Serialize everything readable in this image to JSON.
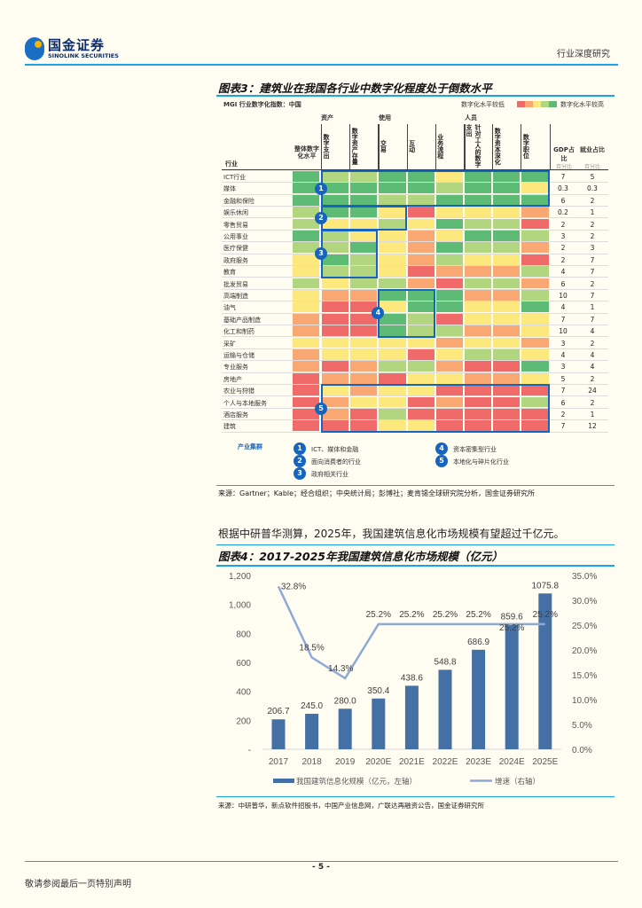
{
  "header": {
    "logo_cn": "国金证券",
    "logo_en": "SINOLINK SECURITIES",
    "section": "行业深度研究"
  },
  "figure3": {
    "title": "图表3：建筑业在我国各行业中数字化程度处于倒数水平",
    "subtitle": "MGI 行业数字化指数：中国",
    "legend_low": "数字化水平较低",
    "legend_high": "数字化水平较高",
    "scale_colors": [
      "#f06a6a",
      "#f9a873",
      "#fde87d",
      "#b2d680",
      "#5dbb76"
    ],
    "groups": [
      "资产",
      "使用",
      "人员"
    ],
    "industry_header": "行业",
    "overall_header": "整体数字化水平",
    "columns": [
      "数字支出",
      "数字资产存量",
      "交易",
      "互动",
      "业务流程",
      "针对工人的数字支出",
      "数字资本深化",
      "数字职位"
    ],
    "gdp_header": "GDP占比",
    "gdp_unit": "百分比",
    "emp_header": "就业占比",
    "emp_unit": "百分比",
    "color_map": {
      "G": "#5dbb76",
      "L": "#b2d680",
      "Y": "#fde87d",
      "O": "#f9a873",
      "R": "#f06a6a"
    },
    "rows": [
      {
        "label": "ICT行业",
        "cells": "GLLGGYGGG",
        "gdp": "7",
        "emp": "5"
      },
      {
        "label": "媒体",
        "cells": "GGGGGLGGY",
        "gdp": "0.3",
        "emp": "0.3"
      },
      {
        "label": "金融和保险",
        "cells": "GGGLLGGGG",
        "gdp": "6",
        "emp": "2"
      },
      {
        "label": "娱乐休闲",
        "cells": "LGGYRYYYO",
        "gdp": "0.2",
        "emp": "1"
      },
      {
        "label": "零售贸易",
        "cells": "LYYLYGLLR",
        "gdp": "2",
        "emp": "2"
      },
      {
        "label": "公用事业",
        "cells": "GLYYOYGGL",
        "gdp": "3",
        "emp": "2"
      },
      {
        "label": "医疗保健",
        "cells": "LLGYOGLLO",
        "gdp": "2",
        "emp": "3"
      },
      {
        "label": "政府服务",
        "cells": "YGLYOLYYR",
        "gdp": "2",
        "emp": "7"
      },
      {
        "label": "教育",
        "cells": "YLLYROOOL",
        "gdp": "4",
        "emp": "7"
      },
      {
        "label": "批发贸易",
        "cells": "LYLLORLLO",
        "gdp": "6",
        "emp": "2"
      },
      {
        "label": "高端制造",
        "cells": "YOOGGGOOL",
        "gdp": "10",
        "emp": "7"
      },
      {
        "label": "油气",
        "cells": "YRRYGGYYG",
        "gdp": "4",
        "emp": "1"
      },
      {
        "label": "基础产品制造",
        "cells": "ORRGLRYYY",
        "gdp": "7",
        "emp": "7"
      },
      {
        "label": "化工和制药",
        "cells": "ORRGLLOOY",
        "gdp": "10",
        "emp": "4"
      },
      {
        "label": "采矿",
        "cells": "YYYYYOYYO",
        "gdp": "3",
        "emp": "2"
      },
      {
        "label": "运输与仓储",
        "cells": "OYYYRYLLY",
        "gdp": "4",
        "emp": "4"
      },
      {
        "label": "专业服务",
        "cells": "OROLLORRG",
        "gdp": "3",
        "emp": "4"
      },
      {
        "label": "房地产",
        "cells": "ROORYYOOY",
        "gdp": "5",
        "emp": "2"
      },
      {
        "label": "农业与狩猎",
        "cells": "RYOYYRRRR",
        "gdp": "7",
        "emp": "24"
      },
      {
        "label": "个人与本地服务",
        "cells": "ROYYRORRL",
        "gdp": "6",
        "emp": "2"
      },
      {
        "label": "酒店服务",
        "cells": "RORLRRRRR",
        "gdp": "2",
        "emp": "1"
      },
      {
        "label": "建筑",
        "cells": "RRRYYRRRR",
        "gdp": "7",
        "emp": "12"
      }
    ],
    "clusters_title": "产业集群",
    "clusters": [
      {
        "n": "1",
        "label": "ICT、媒体和金融",
        "rows": [
          0,
          2
        ],
        "cols": [
          1,
          8
        ]
      },
      {
        "n": "2",
        "label": "面向消费者的行业",
        "rows": [
          3,
          4
        ],
        "cols": [
          1,
          3
        ]
      },
      {
        "n": "3",
        "label": "政府相关行业",
        "rows": [
          5,
          8
        ],
        "cols": [
          1,
          2
        ]
      },
      {
        "n": "4",
        "label": "资本密集型行业",
        "rows": [
          10,
          13
        ],
        "cols": [
          3,
          4
        ]
      },
      {
        "n": "5",
        "label": "本地化与碎片化行业",
        "rows": [
          18,
          21
        ],
        "cols": [
          1,
          8
        ]
      }
    ],
    "source": "来源：Gartner；Kable；经合组织；中央统计局；彭博社；麦肯锡全球研究院分析，国金证券研究所"
  },
  "body_text": "根据中研普华测算，2025年，我国建筑信息化市场规模有望超过千亿元。",
  "figure4": {
    "title": "图表4：2017-2025年我国建筑信息化市场规模（亿元）",
    "source": "来源：中研普华，新点软件招股书，中国产业信息网，广联达再融资公告，国金证券研究所"
  },
  "chart_data": {
    "type": "bar+line",
    "categories": [
      "2017",
      "2018",
      "2019",
      "2020E",
      "2021E",
      "2022E",
      "2023E",
      "2024E",
      "2025E"
    ],
    "series": [
      {
        "name": "我国建筑信息化规模（亿元，左轴）",
        "type": "bar",
        "axis": "left",
        "color": "#4470a5",
        "values": [
          206.7,
          245.0,
          280.0,
          350.4,
          438.6,
          548.8,
          686.9,
          859.6,
          1075.8
        ],
        "labels": [
          "206.7",
          "245.0",
          "280.0",
          "350.4",
          "438.6",
          "548.8",
          "686.9",
          "859.6",
          "1075.8"
        ]
      },
      {
        "name": "增速（右轴）",
        "type": "line",
        "axis": "right",
        "color": "#8fa9d6",
        "values": [
          32.8,
          18.5,
          14.3,
          25.2,
          25.2,
          25.2,
          25.2,
          25.2,
          25.2
        ],
        "labels": [
          "32.8%",
          "18.5%",
          "14.3%",
          "25.2%",
          "25.2%",
          "25.2%",
          "25.2%",
          "25.2%",
          "25.2%"
        ]
      }
    ],
    "y_left": {
      "range": [
        0,
        1200
      ],
      "ticks": [
        "-",
        "200",
        "400",
        "600",
        "800",
        "1,000",
        "1,200"
      ]
    },
    "y_right": {
      "range": [
        0,
        35
      ],
      "ticks": [
        "0.0%",
        "5.0%",
        "10.0%",
        "15.0%",
        "20.0%",
        "25.0%",
        "30.0%",
        "35.0%"
      ]
    },
    "legend_position": "bottom",
    "grid": false
  },
  "footer": {
    "page": "- 5 -",
    "disclaimer": "敬请参阅最后一页特别声明"
  }
}
